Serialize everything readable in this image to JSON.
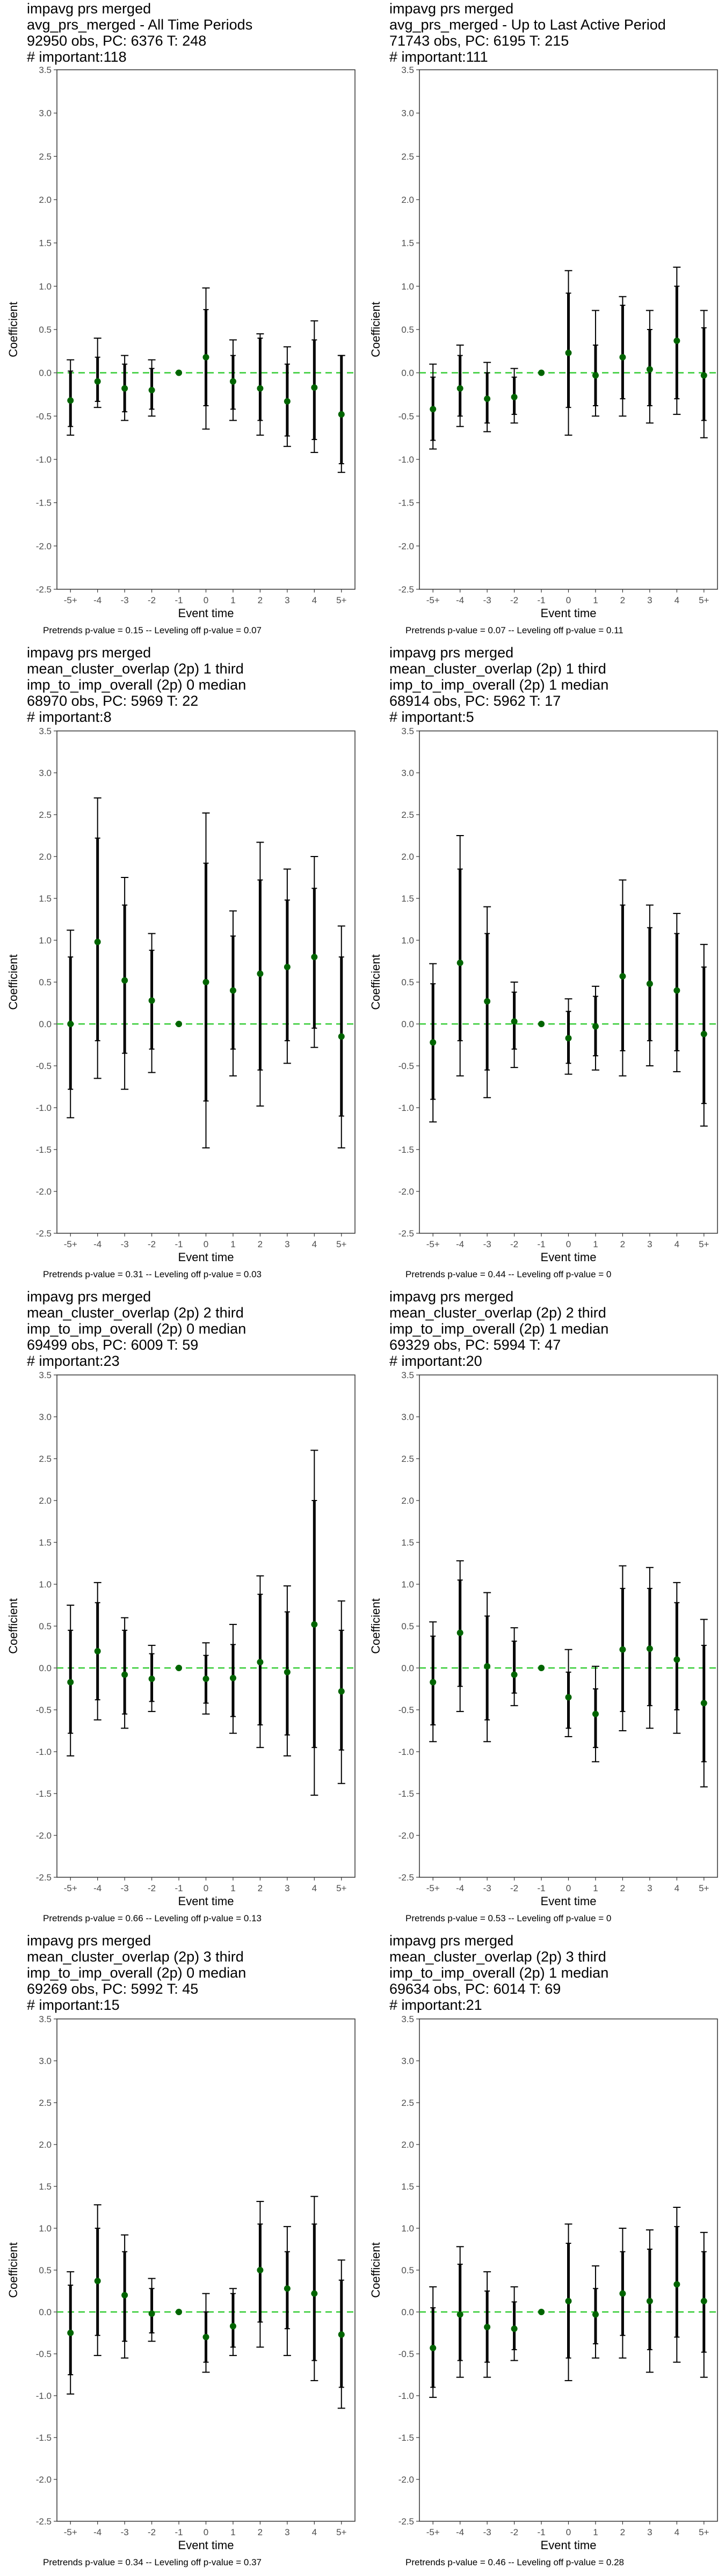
{
  "style": {
    "point_color": "#006400",
    "ref_line_color": "#33cc33",
    "bar_color": "#000000",
    "frame_color": "#333333"
  },
  "chart_data": [
    {
      "type": "scatter",
      "title": [
        " impavg prs merged",
        "avg_prs_merged - All Time Periods",
        "92950 obs, PC: 6376 T: 248",
        "# important:118"
      ],
      "xlabel": "Event time",
      "ylabel": "Coefficient",
      "ylim": [
        -2.5,
        3.5
      ],
      "categories": [
        "-5+",
        "-4",
        "-3",
        "-2",
        "-1",
        "0",
        "1",
        "2",
        "3",
        "4",
        "5+"
      ],
      "yticks": [
        "-2.5",
        "-2.0",
        "-1.5",
        "-1.0",
        "-0.5",
        "0.0",
        "0.5",
        "1.0",
        "1.5",
        "2.0",
        "2.5",
        "3.0",
        "3.5"
      ],
      "values": [
        -0.32,
        -0.1,
        -0.18,
        -0.2,
        0,
        0.18,
        -0.1,
        -0.18,
        -0.33,
        -0.17,
        -0.48
      ],
      "ci90_low": [
        -0.62,
        -0.33,
        -0.45,
        -0.42,
        0,
        -0.38,
        -0.42,
        -0.55,
        -0.73,
        -0.77,
        -1.05
      ],
      "ci90_high": [
        0.02,
        0.18,
        0.1,
        0.05,
        0,
        0.73,
        0.2,
        0.4,
        0.1,
        0.38,
        0.2
      ],
      "ci95_low": [
        -0.72,
        -0.4,
        -0.55,
        -0.5,
        0,
        -0.65,
        -0.55,
        -0.72,
        -0.85,
        -0.92,
        -1.15
      ],
      "ci95_high": [
        0.15,
        0.4,
        0.2,
        0.15,
        0,
        0.98,
        0.38,
        0.45,
        0.3,
        0.6,
        0.2
      ],
      "caption": "Pretrends p-value = 0.15 -- Leveling off p-value = 0.07"
    },
    {
      "type": "scatter",
      "title": [
        " impavg prs merged",
        "avg_prs_merged - Up to Last Active Period",
        "71743 obs, PC: 6195 T: 215",
        "# important:111"
      ],
      "xlabel": "Event time",
      "ylabel": "Coefficient",
      "ylim": [
        -2.5,
        3.5
      ],
      "categories": [
        "-5+",
        "-4",
        "-3",
        "-2",
        "-1",
        "0",
        "1",
        "2",
        "3",
        "4",
        "5+"
      ],
      "yticks": [
        "-2.5",
        "-2.0",
        "-1.5",
        "-1.0",
        "-0.5",
        "0.0",
        "0.5",
        "1.0",
        "1.5",
        "2.0",
        "2.5",
        "3.0",
        "3.5"
      ],
      "values": [
        -0.42,
        -0.18,
        -0.3,
        -0.28,
        0,
        0.23,
        -0.03,
        0.18,
        0.04,
        0.37,
        -0.03
      ],
      "ci90_low": [
        -0.78,
        -0.5,
        -0.58,
        -0.48,
        0,
        -0.4,
        -0.38,
        -0.3,
        -0.38,
        -0.3,
        -0.55
      ],
      "ci90_high": [
        -0.05,
        0.2,
        0.0,
        -0.05,
        0,
        0.92,
        0.32,
        0.78,
        0.5,
        1.0,
        0.52
      ],
      "ci95_low": [
        -0.88,
        -0.62,
        -0.68,
        -0.58,
        0,
        -0.72,
        -0.5,
        -0.5,
        -0.58,
        -0.48,
        -0.75
      ],
      "ci95_high": [
        0.1,
        0.32,
        0.12,
        0.05,
        0,
        1.18,
        0.72,
        0.88,
        0.72,
        1.22,
        0.72
      ],
      "caption": "Pretrends p-value = 0.07 -- Leveling off p-value = 0.11"
    },
    {
      "type": "scatter",
      "title": [
        " impavg prs merged",
        "mean_cluster_overlap (2p) 1 third",
        "imp_to_imp_overall (2p) 0 median",
        "68970 obs, PC: 5969 T: 22",
        "# important:8"
      ],
      "xlabel": "Event time",
      "ylabel": "Coefficient",
      "ylim": [
        -2.5,
        3.5
      ],
      "categories": [
        "-5+",
        "-4",
        "-3",
        "-2",
        "-1",
        "0",
        "1",
        "2",
        "3",
        "4",
        "5+"
      ],
      "yticks": [
        "-2.5",
        "-2.0",
        "-1.5",
        "-1.0",
        "-0.5",
        "0.0",
        "0.5",
        "1.0",
        "1.5",
        "2.0",
        "2.5",
        "3.0",
        "3.5"
      ],
      "values": [
        0,
        0.98,
        0.52,
        0.28,
        0,
        0.5,
        0.4,
        0.6,
        0.68,
        0.8,
        -0.15
      ],
      "ci90_low": [
        -0.78,
        -0.2,
        -0.35,
        -0.3,
        0,
        -0.92,
        -0.3,
        -0.55,
        -0.2,
        -0.05,
        -1.1
      ],
      "ci90_high": [
        0.8,
        2.22,
        1.42,
        0.88,
        0,
        1.92,
        1.05,
        1.72,
        1.48,
        1.62,
        0.8
      ],
      "ci95_low": [
        -1.12,
        -0.65,
        -0.78,
        -0.58,
        0,
        -1.48,
        -0.62,
        -0.98,
        -0.47,
        -0.28,
        -1.48
      ],
      "ci95_high": [
        1.12,
        2.7,
        1.75,
        1.08,
        0,
        2.52,
        1.35,
        2.17,
        1.85,
        2.0,
        1.17
      ],
      "caption": "Pretrends p-value = 0.31 -- Leveling off p-value = 0.03"
    },
    {
      "type": "scatter",
      "title": [
        " impavg prs merged",
        "mean_cluster_overlap (2p) 1 third",
        "imp_to_imp_overall (2p) 1 median",
        "68914 obs, PC: 5962 T: 17",
        "# important:5"
      ],
      "xlabel": "Event time",
      "ylabel": "Coefficient",
      "ylim": [
        -2.5,
        3.5
      ],
      "categories": [
        "-5+",
        "-4",
        "-3",
        "-2",
        "-1",
        "0",
        "1",
        "2",
        "3",
        "4",
        "5+"
      ],
      "yticks": [
        "-2.5",
        "-2.0",
        "-1.5",
        "-1.0",
        "-0.5",
        "0.0",
        "0.5",
        "1.0",
        "1.5",
        "2.0",
        "2.5",
        "3.0",
        "3.5"
      ],
      "values": [
        -0.22,
        0.73,
        0.27,
        0.03,
        0,
        -0.17,
        -0.03,
        0.57,
        0.48,
        0.4,
        -0.12
      ],
      "ci90_low": [
        -0.9,
        -0.2,
        -0.55,
        -0.3,
        0,
        -0.47,
        -0.38,
        -0.32,
        -0.2,
        -0.32,
        -0.95
      ],
      "ci90_high": [
        0.48,
        1.85,
        1.08,
        0.38,
        0,
        0.15,
        0.33,
        1.42,
        1.15,
        1.08,
        0.68
      ],
      "ci95_low": [
        -1.17,
        -0.62,
        -0.88,
        -0.52,
        0,
        -0.6,
        -0.55,
        -0.62,
        -0.5,
        -0.57,
        -1.22
      ],
      "ci95_high": [
        0.72,
        2.25,
        1.4,
        0.5,
        0,
        0.3,
        0.45,
        1.72,
        1.42,
        1.32,
        0.95
      ],
      "caption": "Pretrends p-value = 0.44 -- Leveling off p-value = 0"
    },
    {
      "type": "scatter",
      "title": [
        " impavg prs merged",
        "mean_cluster_overlap (2p) 2 third",
        "imp_to_imp_overall (2p) 0 median",
        "69499 obs, PC: 6009 T: 59",
        "# important:23"
      ],
      "xlabel": "Event time",
      "ylabel": "Coefficient",
      "ylim": [
        -2.5,
        3.5
      ],
      "categories": [
        "-5+",
        "-4",
        "-3",
        "-2",
        "-1",
        "0",
        "1",
        "2",
        "3",
        "4",
        "5+"
      ],
      "yticks": [
        "-2.5",
        "-2.0",
        "-1.5",
        "-1.0",
        "-0.5",
        "0.0",
        "0.5",
        "1.0",
        "1.5",
        "2.0",
        "2.5",
        "3.0",
        "3.5"
      ],
      "values": [
        -0.17,
        0.2,
        -0.08,
        -0.13,
        0,
        -0.13,
        -0.12,
        0.07,
        -0.05,
        0.52,
        -0.28
      ],
      "ci90_low": [
        -0.78,
        -0.38,
        -0.55,
        -0.4,
        0,
        -0.42,
        -0.58,
        -0.68,
        -0.8,
        -0.95,
        -0.98
      ],
      "ci90_high": [
        0.45,
        0.78,
        0.45,
        0.17,
        0,
        0.15,
        0.28,
        0.88,
        0.67,
        2.0,
        0.45
      ],
      "ci95_low": [
        -1.05,
        -0.62,
        -0.72,
        -0.52,
        0,
        -0.55,
        -0.78,
        -0.95,
        -1.05,
        -1.52,
        -1.38
      ],
      "ci95_high": [
        0.75,
        1.02,
        0.6,
        0.27,
        0,
        0.3,
        0.52,
        1.1,
        0.98,
        2.6,
        0.8
      ],
      "caption": "Pretrends p-value = 0.66 -- Leveling off p-value = 0.13"
    },
    {
      "type": "scatter",
      "title": [
        " impavg prs merged",
        "mean_cluster_overlap (2p) 2 third",
        "imp_to_imp_overall (2p) 1 median",
        "69329 obs, PC: 5994 T: 47",
        "# important:20"
      ],
      "xlabel": "Event time",
      "ylabel": "Coefficient",
      "ylim": [
        -2.5,
        3.5
      ],
      "categories": [
        "-5+",
        "-4",
        "-3",
        "-2",
        "-1",
        "0",
        "1",
        "2",
        "3",
        "4",
        "5+"
      ],
      "yticks": [
        "-2.5",
        "-2.0",
        "-1.5",
        "-1.0",
        "-0.5",
        "0.0",
        "0.5",
        "1.0",
        "1.5",
        "2.0",
        "2.5",
        "3.0",
        "3.5"
      ],
      "values": [
        -0.17,
        0.42,
        0.02,
        -0.08,
        0,
        -0.35,
        -0.55,
        0.22,
        0.23,
        0.1,
        -0.42
      ],
      "ci90_low": [
        -0.68,
        -0.22,
        -0.62,
        -0.3,
        0,
        -0.72,
        -0.95,
        -0.52,
        -0.45,
        -0.5,
        -1.12
      ],
      "ci90_high": [
        0.38,
        1.05,
        0.62,
        0.32,
        0,
        -0.05,
        -0.25,
        0.95,
        0.95,
        0.78,
        0.27
      ],
      "ci95_low": [
        -0.88,
        -0.52,
        -0.88,
        -0.45,
        0,
        -0.82,
        -1.12,
        -0.75,
        -0.72,
        -0.78,
        -1.42
      ],
      "ci95_high": [
        0.55,
        1.28,
        0.9,
        0.48,
        0,
        0.22,
        0.02,
        1.22,
        1.2,
        1.02,
        0.58
      ],
      "caption": "Pretrends p-value = 0.53 -- Leveling off p-value = 0"
    },
    {
      "type": "scatter",
      "title": [
        " impavg prs merged",
        "mean_cluster_overlap (2p) 3 third",
        "imp_to_imp_overall (2p) 0 median",
        "69269 obs, PC: 5992 T: 45",
        "# important:15"
      ],
      "xlabel": "Event time",
      "ylabel": "Coefficient",
      "ylim": [
        -2.5,
        3.5
      ],
      "categories": [
        "-5+",
        "-4",
        "-3",
        "-2",
        "-1",
        "0",
        "1",
        "2",
        "3",
        "4",
        "5+"
      ],
      "yticks": [
        "-2.5",
        "-2.0",
        "-1.5",
        "-1.0",
        "-0.5",
        "0.0",
        "0.5",
        "1.0",
        "1.5",
        "2.0",
        "2.5",
        "3.0",
        "3.5"
      ],
      "values": [
        -0.25,
        0.37,
        0.2,
        -0.02,
        0,
        -0.3,
        -0.17,
        0.5,
        0.28,
        0.22,
        -0.27
      ],
      "ci90_low": [
        -0.75,
        -0.28,
        -0.35,
        -0.25,
        0,
        -0.6,
        -0.42,
        -0.12,
        -0.2,
        -0.58,
        -0.9
      ],
      "ci90_high": [
        0.32,
        1.0,
        0.72,
        0.28,
        0,
        0.0,
        0.22,
        1.05,
        0.72,
        1.05,
        0.38
      ],
      "ci95_low": [
        -0.98,
        -0.52,
        -0.55,
        -0.35,
        0,
        -0.72,
        -0.52,
        -0.42,
        -0.52,
        -0.82,
        -1.15
      ],
      "ci95_high": [
        0.48,
        1.28,
        0.92,
        0.4,
        0,
        0.22,
        0.28,
        1.32,
        1.02,
        1.38,
        0.62
      ],
      "caption": "Pretrends p-value = 0.34 -- Leveling off p-value = 0.37"
    },
    {
      "type": "scatter",
      "title": [
        " impavg prs merged",
        "mean_cluster_overlap (2p) 3 third",
        "imp_to_imp_overall (2p) 1 median",
        "69634 obs, PC: 6014 T: 69",
        "# important:21"
      ],
      "xlabel": "Event time",
      "ylabel": "Coefficient",
      "ylim": [
        -2.5,
        3.5
      ],
      "categories": [
        "-5+",
        "-4",
        "-3",
        "-2",
        "-1",
        "0",
        "1",
        "2",
        "3",
        "4",
        "5+"
      ],
      "yticks": [
        "-2.5",
        "-2.0",
        "-1.5",
        "-1.0",
        "-0.5",
        "0.0",
        "0.5",
        "1.0",
        "1.5",
        "2.0",
        "2.5",
        "3.0",
        "3.5"
      ],
      "values": [
        -0.43,
        -0.03,
        -0.18,
        -0.2,
        0,
        0.13,
        -0.03,
        0.22,
        0.13,
        0.33,
        0.13
      ],
      "ci90_low": [
        -0.9,
        -0.58,
        -0.6,
        -0.45,
        0,
        -0.55,
        -0.38,
        -0.28,
        -0.45,
        -0.3,
        -0.48
      ],
      "ci90_high": [
        0.05,
        0.57,
        0.25,
        0.12,
        0,
        0.82,
        0.28,
        0.72,
        0.75,
        1.02,
        0.72
      ],
      "ci95_low": [
        -1.02,
        -0.78,
        -0.78,
        -0.58,
        0,
        -0.82,
        -0.55,
        -0.55,
        -0.72,
        -0.6,
        -0.78
      ],
      "ci95_high": [
        0.3,
        0.78,
        0.48,
        0.3,
        0,
        1.05,
        0.55,
        1.0,
        0.98,
        1.25,
        0.95
      ],
      "caption": "Pretrends p-value = 0.46 -- Leveling off p-value = 0.28"
    }
  ]
}
